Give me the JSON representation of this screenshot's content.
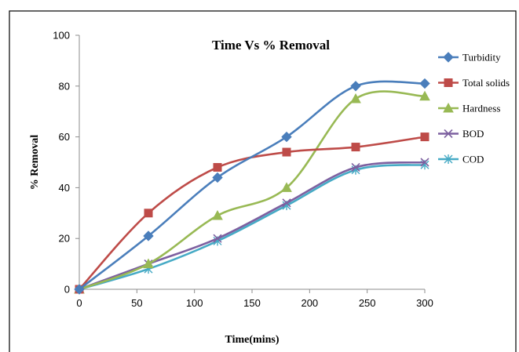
{
  "chart_data": {
    "type": "line",
    "title": "Time Vs % Removal",
    "xlabel": "Time(mins)",
    "ylabel": "% Removal",
    "xlim": [
      0,
      300
    ],
    "ylim": [
      0,
      100
    ],
    "xticks": [
      0,
      50,
      100,
      150,
      200,
      250,
      300
    ],
    "yticks": [
      0,
      20,
      40,
      60,
      80,
      100
    ],
    "smooth": true,
    "grid": false,
    "legend_position": "right",
    "x": [
      0,
      60,
      120,
      180,
      240,
      300
    ],
    "series": [
      {
        "name": "Turbidity",
        "color": "#4a7ebb",
        "marker": "diamond",
        "values": [
          0,
          21,
          44,
          60,
          80,
          81
        ]
      },
      {
        "name": "Total solids",
        "color": "#be4b48",
        "marker": "square",
        "values": [
          0,
          30,
          48,
          54,
          56,
          60
        ]
      },
      {
        "name": "Hardness",
        "color": "#98b954",
        "marker": "triangle",
        "values": [
          0,
          10,
          29,
          40,
          75,
          76
        ]
      },
      {
        "name": "BOD",
        "color": "#7d60a0",
        "marker": "x",
        "values": [
          0,
          10,
          20,
          34,
          48,
          50
        ]
      },
      {
        "name": "COD",
        "color": "#46aac5",
        "marker": "star",
        "values": [
          0,
          8,
          19,
          33,
          47,
          49
        ]
      }
    ]
  }
}
